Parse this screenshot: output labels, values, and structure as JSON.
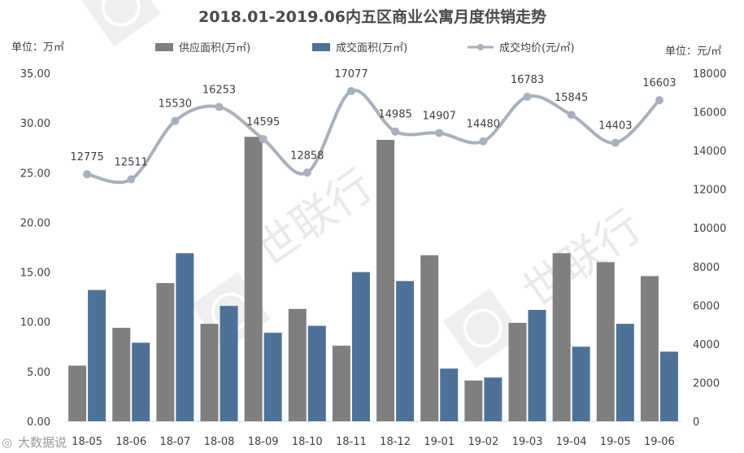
{
  "chart_data": {
    "type": "bar",
    "title": "2018.01-2019.06内五区商业公寓月度供销走势",
    "left_unit_label": "单位：万㎡",
    "right_unit_label": "单位：元/㎡",
    "categories": [
      "18-05",
      "18-06",
      "18-07",
      "18-08",
      "18-09",
      "18-10",
      "18-11",
      "18-12",
      "19-01",
      "19-02",
      "19-03",
      "19-04",
      "19-05",
      "19-06"
    ],
    "series": [
      {
        "name": "供应面积(万㎡)",
        "type": "bar",
        "axis": "left",
        "color": "#7f7f7f",
        "values": [
          5.6,
          9.4,
          13.9,
          9.8,
          28.6,
          11.3,
          7.6,
          28.3,
          16.7,
          4.1,
          9.9,
          16.9,
          16.0,
          14.6
        ]
      },
      {
        "name": "成交面积(万㎡)",
        "type": "bar",
        "axis": "left",
        "color": "#4e7297",
        "values": [
          13.2,
          7.9,
          16.9,
          11.6,
          8.9,
          9.6,
          15.0,
          14.1,
          5.3,
          4.4,
          11.2,
          7.5,
          9.8,
          7.0
        ]
      },
      {
        "name": "成交均价(元/㎡)",
        "type": "line",
        "axis": "right",
        "color": "#a7b1bc",
        "values": [
          12775,
          12511,
          15530,
          16253,
          14595,
          12858,
          17077,
          14985,
          14907,
          14480,
          16783,
          15845,
          14403,
          16603
        ]
      }
    ],
    "y_left": {
      "min": 0,
      "max": 35,
      "ticks": [
        "0.00",
        "5.00",
        "10.00",
        "15.00",
        "20.00",
        "25.00",
        "30.00",
        "35.00"
      ]
    },
    "y_right": {
      "min": 0,
      "max": 18000,
      "ticks": [
        "0",
        "2000",
        "4000",
        "6000",
        "8000",
        "10000",
        "12000",
        "14000",
        "16000",
        "18000"
      ]
    },
    "legend_position": "top",
    "grid": false,
    "watermark_text": "世联行",
    "brand_text": "大数据说"
  }
}
